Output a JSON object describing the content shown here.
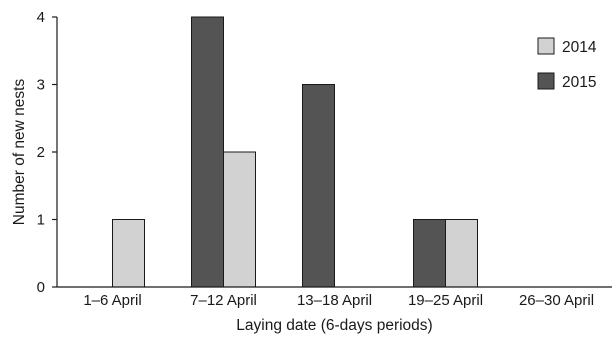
{
  "chart_data": {
    "type": "bar",
    "categories": [
      "1–6 April",
      "7–12 April",
      "13–18 April",
      "19–25 April",
      "26–30 April"
    ],
    "series": [
      {
        "name": "2015",
        "values": [
          0,
          4,
          3,
          1,
          0
        ],
        "color": "#545454"
      },
      {
        "name": "2014",
        "values": [
          1,
          2,
          0,
          1,
          0
        ],
        "color": "#d2d2d2"
      }
    ],
    "legend_order": [
      "2014",
      "2015"
    ],
    "legend_position": "top-right",
    "xlabel": "Laying date (6-days periods)",
    "ylabel": "Number of new nests",
    "ylim": [
      0,
      4
    ],
    "yticks": [
      "0",
      "1",
      "2",
      "3",
      "4"
    ],
    "grid": false
  }
}
